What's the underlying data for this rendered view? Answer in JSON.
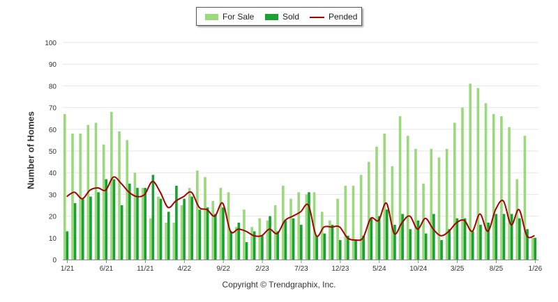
{
  "legend": {
    "items": [
      {
        "label": "For Sale",
        "color": "#9ad97c",
        "kind": "bar"
      },
      {
        "label": "Sold",
        "color": "#1aa033",
        "kind": "bar"
      },
      {
        "label": "Pended",
        "color": "#a80000",
        "kind": "line"
      }
    ]
  },
  "footer": "Copyright © Trendgraphix, Inc.",
  "chart_data": {
    "type": "bar",
    "ylabel": "Number of Homes",
    "xlabel": "",
    "ylim": [
      0,
      100
    ],
    "yticks": [
      0,
      10,
      20,
      30,
      40,
      50,
      60,
      70,
      80,
      90,
      100
    ],
    "grid": true,
    "legend_position": "top-center",
    "x_tick_labels": [
      {
        "index": 0,
        "label": "1/21"
      },
      {
        "index": 5,
        "label": "6/21"
      },
      {
        "index": 10,
        "label": "11/21"
      },
      {
        "index": 15,
        "label": "4/22"
      },
      {
        "index": 20,
        "label": "9/22"
      },
      {
        "index": 25,
        "label": "2/23"
      },
      {
        "index": 30,
        "label": "7/23"
      },
      {
        "index": 35,
        "label": "12/23"
      },
      {
        "index": 40,
        "label": "5/24"
      },
      {
        "index": 45,
        "label": "10/24"
      },
      {
        "index": 50,
        "label": "3/25"
      },
      {
        "index": 55,
        "label": "8/25"
      },
      {
        "index": 60,
        "label": "1/26"
      }
    ],
    "series": [
      {
        "name": "For Sale",
        "type": "bar",
        "color": "#9ad97c",
        "values": [
          67,
          58,
          58,
          62,
          63,
          53,
          68,
          59,
          55,
          40,
          33,
          19,
          29,
          17,
          17,
          25,
          33,
          41,
          38,
          27,
          33,
          31,
          15,
          23,
          15,
          19,
          18,
          25,
          34,
          28,
          31,
          30,
          31,
          22,
          18,
          28,
          34,
          34,
          39,
          45,
          52,
          58,
          43,
          66,
          57,
          51,
          35,
          51,
          47,
          51,
          63,
          70,
          81,
          79,
          72,
          67,
          66,
          61,
          37,
          57,
          10
        ]
      },
      {
        "name": "Sold",
        "type": "bar",
        "color": "#1aa033",
        "values": [
          13,
          26,
          28,
          29,
          31,
          37,
          37,
          25,
          35,
          33,
          33,
          39,
          28,
          22,
          34,
          28,
          29,
          23,
          24,
          21,
          24,
          13,
          17,
          8,
          13,
          11,
          20,
          13,
          18,
          19,
          16,
          31,
          11,
          12,
          16,
          9,
          11,
          9,
          11,
          19,
          20,
          23,
          16,
          21,
          14,
          18,
          12,
          21,
          9,
          14,
          19,
          19,
          13,
          16,
          17,
          21,
          21,
          21,
          19,
          14,
          10
        ]
      },
      {
        "name": "Pended",
        "type": "line",
        "color": "#a80000",
        "values": [
          29,
          31,
          28,
          32,
          33,
          32,
          38,
          35,
          31,
          29,
          30,
          36,
          31,
          24,
          27,
          29,
          31,
          24,
          23,
          20,
          26,
          13,
          14,
          13,
          11,
          11,
          14,
          12,
          18,
          20,
          22,
          25,
          11,
          15,
          15,
          15,
          10,
          9,
          10,
          19,
          18,
          26,
          12,
          17,
          20,
          14,
          19,
          14,
          11,
          13,
          17,
          18,
          13,
          21,
          13,
          23,
          27,
          16,
          23,
          11,
          11
        ]
      }
    ]
  }
}
